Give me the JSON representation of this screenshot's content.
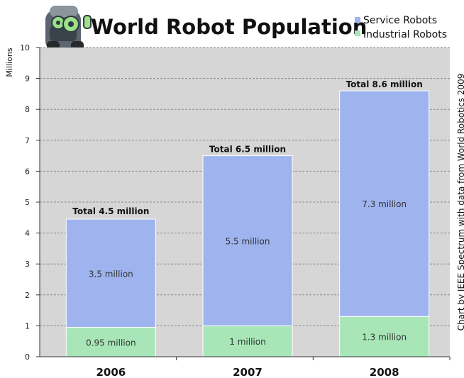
{
  "chart_data": {
    "type": "bar",
    "stacked": true,
    "title": "World Robot Population",
    "ylabel": "Millions",
    "xlabel": "",
    "credit": "Chart by IEEE Spectrum with data from World Robotics 2009",
    "categories": [
      "2006",
      "2007",
      "2008"
    ],
    "ylim": [
      0,
      10
    ],
    "yticks": [
      0,
      1,
      2,
      3,
      4,
      5,
      6,
      7,
      8,
      9,
      10
    ],
    "grid": true,
    "legend_position": "top-right",
    "series": [
      {
        "name": "Industrial Robots",
        "color": "#a8e6b8",
        "values": [
          0.95,
          1.0,
          1.3
        ],
        "labels": [
          "0.95 million",
          "1 million",
          "1.3 million"
        ]
      },
      {
        "name": "Service Robots",
        "color": "#9fb4ee",
        "values": [
          3.5,
          5.5,
          7.3
        ],
        "labels": [
          "3.5 million",
          "5.5 million",
          "7.3 million"
        ]
      }
    ],
    "legend_order": [
      "Service Robots",
      "Industrial Robots"
    ],
    "totals": [
      4.5,
      6.5,
      8.6
    ],
    "total_labels": [
      "Total 4.5 million",
      "Total 6.5 million",
      "Total 8.6 million"
    ],
    "plot_background": "#d6d6d6",
    "logo_icon": "robot-head-icon"
  }
}
